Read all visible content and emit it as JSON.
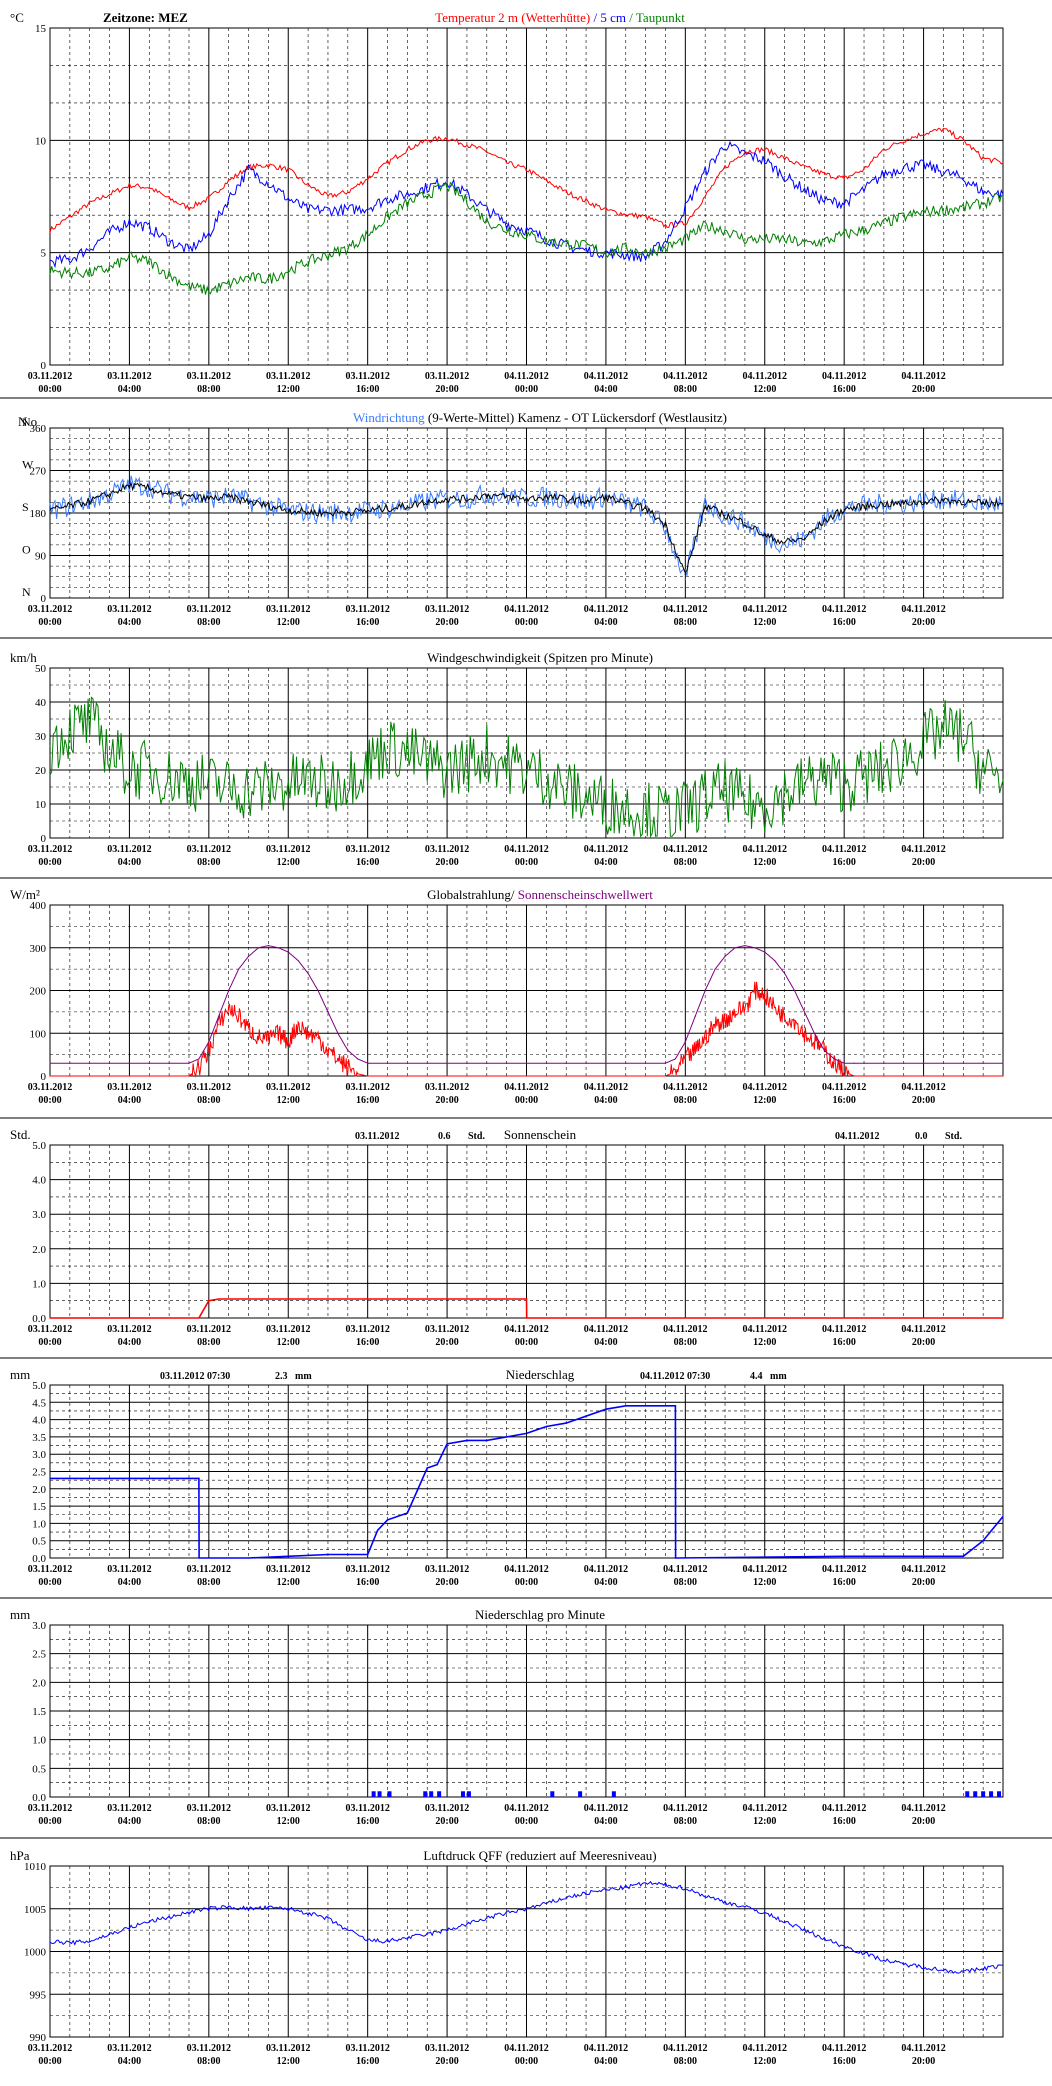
{
  "time_ticks": [
    [
      "03.11.2012",
      "00:00"
    ],
    [
      "03.11.2012",
      "04:00"
    ],
    [
      "03.11.2012",
      "08:00"
    ],
    [
      "03.11.2012",
      "12:00"
    ],
    [
      "03.11.2012",
      "16:00"
    ],
    [
      "03.11.2012",
      "20:00"
    ],
    [
      "04.11.2012",
      "00:00"
    ],
    [
      "04.11.2012",
      "04:00"
    ],
    [
      "04.11.2012",
      "08:00"
    ],
    [
      "04.11.2012",
      "12:00"
    ],
    [
      "04.11.2012",
      "16:00"
    ],
    [
      "04.11.2012",
      "20:00"
    ]
  ],
  "colors": {
    "red": "#ff0000",
    "blue": "#0000ff",
    "green": "#008000",
    "purple": "#800080",
    "lightblue": "#3b7bff",
    "black": "#000000"
  },
  "chart_data": [
    {
      "id": "temperature",
      "type": "line",
      "unit": "°C",
      "header_left": "Zeitzone: MEZ",
      "title_parts": [
        {
          "text": "Temperatur 2 m (Wetterhütte)",
          "color": "#ff0000"
        },
        {
          "text": "  /  ",
          "color": "#0000ff"
        },
        {
          "text": "5 cm",
          "color": "#0000ff"
        },
        {
          "text": " / ",
          "color": "#008000"
        },
        {
          "text": "Taupunkt",
          "color": "#008000"
        }
      ],
      "ylim": [
        0,
        15
      ],
      "yticks": [
        "0",
        "5",
        "10",
        "15"
      ],
      "x_hours": [
        0,
        1,
        2,
        3,
        4,
        5,
        6,
        7,
        8,
        9,
        10,
        11,
        12,
        13,
        14,
        15,
        16,
        17,
        18,
        19,
        20,
        21,
        22,
        23,
        24,
        25,
        26,
        27,
        28,
        29,
        30,
        31,
        32,
        33,
        34,
        35,
        36,
        37,
        38,
        39,
        40,
        41,
        42,
        43,
        44,
        45,
        46,
        47,
        48
      ],
      "series": [
        {
          "name": "Temperatur 2 m (Wetterhütte)",
          "color": "#ff0000",
          "values": [
            6.0,
            6.6,
            7.2,
            7.6,
            8.0,
            7.9,
            7.4,
            7.0,
            7.4,
            8.2,
            8.8,
            8.9,
            8.7,
            8.0,
            7.5,
            7.7,
            8.3,
            9.0,
            9.6,
            10.0,
            10.1,
            9.8,
            9.5,
            9.0,
            8.7,
            8.2,
            7.7,
            7.3,
            6.9,
            6.7,
            6.6,
            6.2,
            6.3,
            7.5,
            8.8,
            9.5,
            9.6,
            9.2,
            8.8,
            8.5,
            8.3,
            8.7,
            9.6,
            10.0,
            10.3,
            10.5,
            10.0,
            9.2,
            9.0
          ]
        },
        {
          "name": "5 cm",
          "color": "#0000ff",
          "values": [
            4.6,
            4.7,
            5.2,
            5.9,
            6.4,
            6.1,
            5.5,
            5.1,
            5.8,
            7.4,
            8.7,
            8.1,
            7.4,
            6.9,
            6.9,
            6.9,
            7.0,
            7.4,
            7.6,
            7.9,
            8.2,
            7.6,
            6.9,
            6.3,
            6.0,
            5.6,
            5.3,
            5.1,
            5.0,
            4.9,
            4.8,
            5.5,
            7.0,
            8.6,
            9.8,
            9.4,
            9.1,
            8.4,
            7.8,
            7.3,
            7.2,
            7.8,
            8.5,
            8.8,
            8.9,
            8.6,
            8.3,
            7.7,
            7.6
          ]
        },
        {
          "name": "Taupunkt",
          "color": "#008000",
          "values": [
            4.2,
            4.1,
            4.1,
            4.3,
            4.8,
            4.6,
            4.0,
            3.5,
            3.3,
            3.6,
            3.9,
            3.8,
            4.2,
            4.6,
            4.9,
            5.2,
            5.8,
            6.6,
            7.2,
            7.6,
            8.0,
            7.3,
            6.4,
            6.0,
            5.8,
            5.5,
            5.4,
            5.3,
            5.0,
            5.2,
            5.0,
            5.2,
            5.6,
            6.2,
            6.0,
            5.6,
            5.6,
            5.6,
            5.4,
            5.5,
            5.8,
            6.0,
            6.3,
            6.6,
            6.8,
            6.9,
            7.0,
            7.2,
            7.5
          ]
        }
      ]
    },
    {
      "id": "wind_direction",
      "type": "line",
      "unit": "N o",
      "title_parts": [
        {
          "text": "Windrichtung",
          "color": "#3b7bff"
        },
        {
          "text": " (9-Werte-Mittel)",
          "color": "#000000"
        },
        {
          "text": "        Kamenz - OT Lückersdorf (Westlausitz)",
          "color": "#000000"
        }
      ],
      "ylim": [
        0,
        360
      ],
      "yticks": [
        "0",
        "90",
        "180",
        "270",
        "360"
      ],
      "compass_labels": [
        "N",
        "O",
        "S",
        "W",
        "N"
      ],
      "x_hours": [
        0,
        1,
        2,
        3,
        4,
        5,
        6,
        7,
        8,
        9,
        10,
        11,
        12,
        13,
        14,
        15,
        16,
        17,
        18,
        19,
        20,
        21,
        22,
        23,
        24,
        25,
        26,
        27,
        28,
        29,
        30,
        31,
        32,
        33,
        34,
        35,
        36,
        37,
        38,
        39,
        40,
        41,
        42,
        43,
        44,
        45,
        46,
        47,
        48
      ],
      "series": [
        {
          "name": "Windrichtung",
          "color": "#3b7bff",
          "values": [
            185,
            195,
            205,
            220,
            240,
            235,
            220,
            215,
            210,
            215,
            205,
            195,
            185,
            182,
            180,
            182,
            185,
            190,
            195,
            205,
            210,
            210,
            220,
            215,
            210,
            215,
            210,
            205,
            215,
            200,
            190,
            150,
            40,
            200,
            175,
            160,
            130,
            115,
            125,
            165,
            190,
            195,
            200,
            200,
            205,
            210,
            205,
            200,
            200
          ]
        },
        {
          "name": "9-Werte-Mittel",
          "color": "#000000",
          "values": [
            185,
            195,
            205,
            220,
            238,
            232,
            220,
            214,
            210,
            214,
            204,
            195,
            186,
            182,
            180,
            182,
            185,
            190,
            195,
            204,
            210,
            210,
            218,
            214,
            210,
            214,
            210,
            205,
            214,
            200,
            190,
            155,
            50,
            195,
            175,
            160,
            132,
            118,
            126,
            163,
            188,
            194,
            199,
            200,
            204,
            208,
            204,
            200,
            200
          ]
        }
      ]
    },
    {
      "id": "wind_speed",
      "type": "line",
      "unit": "km/h",
      "title_parts": [
        {
          "text": "Windgeschwindigkeit (Spitzen pro Minute)",
          "color": "#000000"
        }
      ],
      "ylim": [
        0,
        50
      ],
      "yticks": [
        "0",
        "10",
        "20",
        "30",
        "40",
        "50"
      ],
      "x_hours": [
        0,
        1,
        2,
        3,
        4,
        5,
        6,
        7,
        8,
        9,
        10,
        11,
        12,
        13,
        14,
        15,
        16,
        17,
        18,
        19,
        20,
        21,
        22,
        23,
        24,
        25,
        26,
        27,
        28,
        29,
        30,
        31,
        32,
        33,
        34,
        35,
        36,
        37,
        38,
        39,
        40,
        41,
        42,
        43,
        44,
        45,
        46,
        47,
        48
      ],
      "series": [
        {
          "name": "Windgeschwindigkeit",
          "color": "#008000",
          "values": [
            27,
            32,
            34,
            26,
            20,
            20,
            18,
            17,
            16,
            15,
            14,
            15,
            16,
            17,
            15,
            18,
            22,
            27,
            25,
            22,
            20,
            22,
            25,
            22,
            20,
            18,
            14,
            12,
            10,
            9,
            8,
            7,
            8,
            12,
            14,
            10,
            10,
            13,
            16,
            18,
            16,
            18,
            20,
            24,
            28,
            32,
            30,
            20,
            17
          ]
        }
      ]
    },
    {
      "id": "radiation",
      "type": "line",
      "unit": "W/m²",
      "title_parts": [
        {
          "text": "Globalstrahlung/ ",
          "color": "#000000"
        },
        {
          "text": "Sonnenscheinschwellwert",
          "color": "#800080"
        }
      ],
      "ylim": [
        0,
        400
      ],
      "yticks": [
        "0",
        "100",
        "200",
        "300",
        "400"
      ],
      "x_hours": [
        0,
        1,
        2,
        3,
        4,
        5,
        6,
        7,
        7.5,
        8,
        8.5,
        9,
        9.5,
        10,
        10.5,
        11,
        11.5,
        12,
        12.5,
        13,
        13.5,
        14,
        14.5,
        15,
        15.5,
        16,
        17,
        18,
        19,
        20,
        21,
        22,
        23,
        24,
        25,
        26,
        27,
        28,
        29,
        30,
        31,
        31.5,
        32,
        32.5,
        33,
        33.5,
        34,
        34.5,
        35,
        35.5,
        36,
        36.5,
        37,
        37.5,
        38,
        38.5,
        39,
        39.5,
        40,
        40.5,
        41,
        42,
        43,
        44,
        45,
        46,
        47,
        48
      ],
      "series": [
        {
          "name": "Globalstrahlung",
          "color": "#ff0000",
          "values": [
            0,
            0,
            0,
            0,
            0,
            0,
            0,
            0,
            20,
            60,
            120,
            160,
            140,
            110,
            90,
            85,
            100,
            80,
            120,
            100,
            90,
            60,
            40,
            20,
            5,
            0,
            0,
            0,
            0,
            0,
            0,
            0,
            0,
            0,
            0,
            0,
            0,
            0,
            0,
            0,
            0,
            10,
            40,
            60,
            90,
            120,
            130,
            150,
            160,
            200,
            190,
            160,
            140,
            130,
            100,
            80,
            60,
            30,
            10,
            0,
            0,
            0,
            0,
            0,
            0,
            0,
            0,
            0
          ]
        },
        {
          "name": "Sonnenscheinschwellwert",
          "color": "#800080",
          "values": [
            30,
            30,
            30,
            30,
            30,
            30,
            30,
            30,
            40,
            80,
            140,
            200,
            250,
            280,
            300,
            305,
            300,
            290,
            270,
            240,
            200,
            150,
            100,
            60,
            40,
            30,
            30,
            30,
            30,
            30,
            30,
            30,
            30,
            30,
            30,
            30,
            30,
            30,
            30,
            30,
            30,
            40,
            80,
            140,
            200,
            250,
            280,
            300,
            305,
            300,
            290,
            270,
            240,
            200,
            150,
            100,
            60,
            40,
            30,
            30,
            30,
            30,
            30,
            30,
            30,
            30,
            30,
            30
          ]
        }
      ]
    },
    {
      "id": "sunshine",
      "type": "line",
      "unit": "Std.",
      "title_parts": [
        {
          "text": "Sonnenschein",
          "color": "#000000"
        }
      ],
      "daily_totals": [
        {
          "date": "03.11.2012",
          "value": "0.6",
          "unit": "Std."
        },
        {
          "date": "04.11.2012",
          "value": "0.0",
          "unit": "Std."
        }
      ],
      "ylim": [
        0,
        5
      ],
      "yticks": [
        "0.0",
        "1.0",
        "2.0",
        "3.0",
        "4.0",
        "5.0"
      ],
      "x_hours": [
        0,
        7.5,
        8.0,
        8.5,
        24,
        24.01,
        48
      ],
      "series": [
        {
          "name": "Sonnenschein",
          "color": "#ff0000",
          "values": [
            0,
            0,
            0.5,
            0.55,
            0.55,
            0,
            0
          ]
        }
      ]
    },
    {
      "id": "precipitation",
      "type": "line",
      "unit": "mm",
      "title_parts": [
        {
          "text": "Niederschlag",
          "color": "#000000"
        }
      ],
      "daily_totals": [
        {
          "date": "03.11.2012 07:30",
          "value": "2.3",
          "unit": "mm"
        },
        {
          "date": "04.11.2012 07:30",
          "value": "4.4",
          "unit": "mm"
        }
      ],
      "ylim": [
        0,
        5
      ],
      "yticks": [
        "0.0",
        "0.5",
        "1.0",
        "1.5",
        "2.0",
        "2.5",
        "3.0",
        "3.5",
        "4.0",
        "4.5",
        "5.0"
      ],
      "x_hours": [
        0,
        7.5,
        7.51,
        10,
        12,
        14,
        16,
        16.5,
        17,
        18,
        19,
        19.5,
        20,
        21,
        22,
        23,
        24,
        25,
        26,
        27,
        28,
        29,
        31.5,
        31.51,
        40,
        46,
        47,
        48
      ],
      "series": [
        {
          "name": "Niederschlag",
          "color": "#0000ff",
          "values": [
            2.3,
            2.3,
            0,
            0,
            0.05,
            0.1,
            0.1,
            0.8,
            1.1,
            1.3,
            2.6,
            2.7,
            3.3,
            3.4,
            3.4,
            3.5,
            3.6,
            3.8,
            3.9,
            4.1,
            4.3,
            4.4,
            4.4,
            0,
            0.05,
            0.05,
            0.5,
            1.2
          ]
        }
      ]
    },
    {
      "id": "precipitation_per_minute",
      "type": "bar",
      "unit": "mm",
      "title_parts": [
        {
          "text": "Niederschlag pro Minute",
          "color": "#000000"
        }
      ],
      "ylim": [
        0,
        3
      ],
      "yticks": [
        "0.0",
        "0.5",
        "1.0",
        "1.5",
        "2.0",
        "2.5",
        "3.0",
        "3.5"
      ],
      "x_hours": [
        16.3,
        16.6,
        17.1,
        18.9,
        19.2,
        19.6,
        20.8,
        21.1,
        25.3,
        26.7,
        28.4,
        46.2,
        46.6,
        47.0,
        47.4,
        47.8
      ],
      "series": [
        {
          "name": "Niederschlag pro Minute",
          "color": "#0000ff",
          "values": [
            0.1,
            0.1,
            0.1,
            0.1,
            0.1,
            0.1,
            0.1,
            0.1,
            0.1,
            0.1,
            0.1,
            0.1,
            0.1,
            0.1,
            0.1,
            0.1
          ]
        }
      ]
    },
    {
      "id": "pressure",
      "type": "line",
      "unit": "hPa",
      "title_parts": [
        {
          "text": "Luftdruck QFF (reduziert auf Meeresniveau)",
          "color": "#000000"
        }
      ],
      "ylim": [
        990,
        1010
      ],
      "yticks": [
        "990",
        "995",
        "1000",
        "1005",
        "1010"
      ],
      "x_hours": [
        0,
        1,
        2,
        3,
        4,
        5,
        6,
        7,
        8,
        9,
        10,
        11,
        12,
        13,
        14,
        15,
        16,
        17,
        18,
        19,
        20,
        21,
        22,
        23,
        24,
        25,
        26,
        27,
        28,
        29,
        30,
        31,
        32,
        33,
        34,
        35,
        36,
        37,
        38,
        39,
        40,
        41,
        42,
        43,
        44,
        45,
        46,
        47,
        48
      ],
      "series": [
        {
          "name": "Luftdruck QFF",
          "color": "#0000ff",
          "values": [
            1001.2,
            1001.0,
            1001.2,
            1002.0,
            1002.8,
            1003.5,
            1004.0,
            1004.6,
            1005.0,
            1005.2,
            1005.0,
            1005.1,
            1005.0,
            1004.5,
            1003.8,
            1002.5,
            1001.3,
            1001.2,
            1001.6,
            1002.0,
            1002.5,
            1003.2,
            1003.9,
            1004.5,
            1005.0,
            1005.6,
            1006.3,
            1006.8,
            1007.2,
            1007.5,
            1008.0,
            1007.8,
            1007.4,
            1006.5,
            1005.8,
            1005.2,
            1004.5,
            1003.5,
            1002.5,
            1001.5,
            1000.6,
            999.8,
            999.0,
            998.5,
            998.2,
            997.8,
            997.6,
            998.0,
            998.4
          ]
        }
      ]
    }
  ]
}
